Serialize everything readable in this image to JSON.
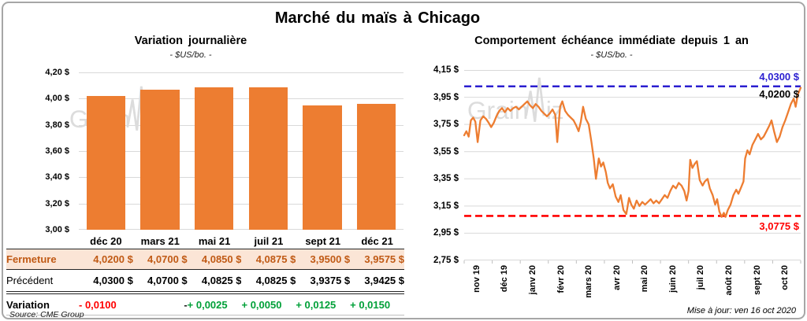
{
  "page": {
    "title": "Marché du maïs à Chicago",
    "source_note": "Source: CME Group",
    "update_note": "Mise à jour: ven 16 oct 2020",
    "watermark": {
      "text_before_spike": "Grain",
      "text_after_spike": "iz"
    }
  },
  "table": {
    "columns": [
      "déc 20",
      "mars 21",
      "mai 21",
      "juil 21",
      "sept 21",
      "déc 21"
    ],
    "row_labels": [
      "Fermeture",
      "Précédent",
      "Variation"
    ],
    "fermeture": [
      "4,0200 $",
      "4,0700 $",
      "4,0850 $",
      "4,0875 $",
      "3,9500 $",
      "3,9575 $"
    ],
    "precedent": [
      "4,0300 $",
      "4,0700 $",
      "4,0825 $",
      "4,0825 $",
      "3,9375 $",
      "3,9425 $"
    ],
    "variation": [
      "- 0,0100",
      "-",
      "+ 0,0025",
      "+ 0,0050",
      "+ 0,0125",
      "+ 0,0150"
    ]
  },
  "colors": {
    "orange": "#ED7D31",
    "blue": "#2B1FD0",
    "red": "#FF0000",
    "green": "#00A038",
    "peach": "#FBE5D6",
    "brown": "#C05A15",
    "grid": "#D9D9D9",
    "border": "#A6A6A6",
    "watermark": "#DCDCDC"
  },
  "chart_data": [
    {
      "type": "bar",
      "title": "Variation journalière",
      "subtitle": "- $US/bo. -",
      "categories": [
        "déc 20",
        "mars 21",
        "mai 21",
        "juil 21",
        "sept 21",
        "déc 21"
      ],
      "values": [
        4.02,
        4.07,
        4.085,
        4.0875,
        3.95,
        3.9575
      ],
      "ylim": [
        3.0,
        4.2
      ],
      "yticks": {
        "values": [
          4.2,
          4.0,
          3.8,
          3.6,
          3.4,
          3.2,
          3.0
        ],
        "labels": [
          "4,20 $",
          "4,00 $",
          "3,80 $",
          "3,60 $",
          "3,40 $",
          "3,20 $",
          "3,00 $"
        ]
      },
      "grid": true,
      "bar_color": "#ED7D31"
    },
    {
      "type": "line",
      "title": "Comportement échéance immédiate depuis 1 an",
      "subtitle": "- $US/bo. -",
      "x_categories": [
        "nov 19",
        "déc 19",
        "janv 20",
        "févr 20",
        "mars 20",
        "avr 20",
        "mai 20",
        "juin 20",
        "juil 20",
        "août 20",
        "sept 20",
        "oct 20"
      ],
      "ylim": [
        2.75,
        4.15
      ],
      "yticks": {
        "values": [
          4.15,
          3.95,
          3.75,
          3.55,
          3.35,
          3.15,
          2.95,
          2.75
        ],
        "labels": [
          "4,15 $",
          "3,95 $",
          "3,75 $",
          "3,55 $",
          "3,35 $",
          "3,15 $",
          "2,95 $",
          "2,75 $"
        ]
      },
      "grid": true,
      "line_color": "#ED7D31",
      "reference_lines": [
        {
          "value": 4.03,
          "label": "4,0300 $",
          "color": "#2B1FD0",
          "style": "dashed"
        },
        {
          "value": 3.0775,
          "label": "3,0775 $",
          "color": "#FF0000",
          "style": "dashed"
        }
      ],
      "last_value": {
        "value": 4.02,
        "label": "4,0200 $"
      },
      "series": [
        {
          "name": "échéance immédiate",
          "points": [
            [
              0,
              3.67
            ],
            [
              0.08,
              3.7
            ],
            [
              0.16,
              3.66
            ],
            [
              0.24,
              3.78
            ],
            [
              0.32,
              3.8
            ],
            [
              0.4,
              3.77
            ],
            [
              0.48,
              3.62
            ],
            [
              0.58,
              3.78
            ],
            [
              0.68,
              3.81
            ],
            [
              0.78,
              3.79
            ],
            [
              0.88,
              3.76
            ],
            [
              0.96,
              3.73
            ],
            [
              1.05,
              3.76
            ],
            [
              1.15,
              3.81
            ],
            [
              1.25,
              3.85
            ],
            [
              1.35,
              3.87
            ],
            [
              1.45,
              3.84
            ],
            [
              1.55,
              3.87
            ],
            [
              1.65,
              3.85
            ],
            [
              1.75,
              3.87
            ],
            [
              1.85,
              3.88
            ],
            [
              1.95,
              3.86
            ],
            [
              2.05,
              3.88
            ],
            [
              2.15,
              3.9
            ],
            [
              2.25,
              3.92
            ],
            [
              2.35,
              3.89
            ],
            [
              2.45,
              3.87
            ],
            [
              2.55,
              3.9
            ],
            [
              2.65,
              3.88
            ],
            [
              2.75,
              3.85
            ],
            [
              2.85,
              3.83
            ],
            [
              2.95,
              3.81
            ],
            [
              3.05,
              3.83
            ],
            [
              3.15,
              3.86
            ],
            [
              3.25,
              3.82
            ],
            [
              3.32,
              3.62
            ],
            [
              3.42,
              3.88
            ],
            [
              3.5,
              3.92
            ],
            [
              3.6,
              3.85
            ],
            [
              3.7,
              3.82
            ],
            [
              3.8,
              3.8
            ],
            [
              3.9,
              3.78
            ],
            [
              4,
              3.74
            ],
            [
              4.08,
              3.7
            ],
            [
              4.16,
              3.77
            ],
            [
              4.24,
              3.88
            ],
            [
              4.34,
              3.79
            ],
            [
              4.44,
              3.75
            ],
            [
              4.54,
              3.62
            ],
            [
              4.62,
              3.5
            ],
            [
              4.7,
              3.35
            ],
            [
              4.8,
              3.5
            ],
            [
              4.88,
              3.44
            ],
            [
              4.96,
              3.47
            ],
            [
              5.05,
              3.4
            ],
            [
              5.12,
              3.32
            ],
            [
              5.2,
              3.28
            ],
            [
              5.3,
              3.31
            ],
            [
              5.4,
              3.22
            ],
            [
              5.5,
              3.18
            ],
            [
              5.58,
              3.23
            ],
            [
              5.68,
              3.12
            ],
            [
              5.78,
              3.09
            ],
            [
              5.88,
              3.21
            ],
            [
              5.96,
              3.16
            ],
            [
              6.05,
              3.13
            ],
            [
              6.15,
              3.19
            ],
            [
              6.25,
              3.15
            ],
            [
              6.35,
              3.18
            ],
            [
              6.45,
              3.16
            ],
            [
              6.55,
              3.18
            ],
            [
              6.65,
              3.2
            ],
            [
              6.75,
              3.17
            ],
            [
              6.85,
              3.19
            ],
            [
              6.95,
              3.17
            ],
            [
              7.05,
              3.2
            ],
            [
              7.15,
              3.23
            ],
            [
              7.25,
              3.21
            ],
            [
              7.35,
              3.26
            ],
            [
              7.45,
              3.3
            ],
            [
              7.55,
              3.28
            ],
            [
              7.65,
              3.32
            ],
            [
              7.75,
              3.3
            ],
            [
              7.85,
              3.26
            ],
            [
              7.93,
              3.19
            ],
            [
              8,
              3.26
            ],
            [
              8.06,
              3.49
            ],
            [
              8.14,
              3.43
            ],
            [
              8.22,
              3.46
            ],
            [
              8.3,
              3.48
            ],
            [
              8.4,
              3.34
            ],
            [
              8.5,
              3.3
            ],
            [
              8.58,
              3.33
            ],
            [
              8.68,
              3.35
            ],
            [
              8.76,
              3.28
            ],
            [
              8.86,
              3.23
            ],
            [
              8.95,
              3.16
            ],
            [
              9.02,
              3.2
            ],
            [
              9.1,
              3.11
            ],
            [
              9.18,
              3.07
            ],
            [
              9.26,
              3.1
            ],
            [
              9.32,
              3.07
            ],
            [
              9.4,
              3.12
            ],
            [
              9.5,
              3.16
            ],
            [
              9.6,
              3.23
            ],
            [
              9.7,
              3.27
            ],
            [
              9.78,
              3.24
            ],
            [
              9.88,
              3.29
            ],
            [
              9.96,
              3.33
            ],
            [
              10.02,
              3.5
            ],
            [
              10.1,
              3.56
            ],
            [
              10.18,
              3.53
            ],
            [
              10.28,
              3.6
            ],
            [
              10.38,
              3.64
            ],
            [
              10.48,
              3.68
            ],
            [
              10.58,
              3.64
            ],
            [
              10.68,
              3.66
            ],
            [
              10.78,
              3.7
            ],
            [
              10.88,
              3.74
            ],
            [
              10.96,
              3.78
            ],
            [
              11.05,
              3.7
            ],
            [
              11.15,
              3.62
            ],
            [
              11.25,
              3.66
            ],
            [
              11.35,
              3.73
            ],
            [
              11.45,
              3.78
            ],
            [
              11.55,
              3.84
            ],
            [
              11.65,
              3.9
            ],
            [
              11.75,
              3.94
            ],
            [
              11.82,
              3.88
            ],
            [
              11.9,
              3.97
            ],
            [
              12,
              4.02
            ]
          ]
        }
      ]
    }
  ]
}
